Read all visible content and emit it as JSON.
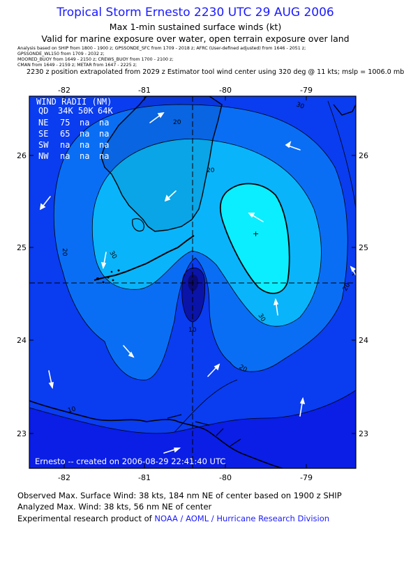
{
  "title": "Tropical Storm Ernesto 2230 UTC 29 AUG 2006",
  "subtitle1": "Max 1-min sustained surface winds (kt)",
  "subtitle2": "Valid for marine exposure over water, open terrain exposure over land",
  "analysis_lines": [
    "Analysis based on SHIP from 1800 - 1900 z;  GPSSONDE_SFC from 1709 - 2018 z;  AFRC (User-defined adjusted) from 1646 - 2051 z;",
    "GPSSONDE_WL150 from 1709 - 2032 z;",
    "MOORED_BUOY from 1649 - 2150 z;  CREWS_BUOY from 1700 - 2100 z;",
    "CMAN from 1649 - 2159 z;  METAR from 1647 - 2225 z;"
  ],
  "extrapolation_note": "2230 z position extrapolated from 2029 z Estimator tool wind center using 320 deg @ 11 kts; mslp = 1006.0 mb",
  "map": {
    "lon_ticks": [
      "-82",
      "-81",
      "-80",
      "-79"
    ],
    "lat_ticks": [
      "26",
      "25",
      "24",
      "23"
    ],
    "contour_labels": [
      "20",
      "20",
      "20",
      "20",
      "30",
      "30",
      "30",
      "10",
      "10",
      "20"
    ],
    "credit": "Ernesto -- created on 2006-08-29 22:41:40 UTC",
    "colors": {
      "lt10": "#0a1ee6",
      "c10": "#0a3cf0",
      "c20": "#0a6ef5",
      "c30": "#0ab4fa",
      "c35": "#0aeeff",
      "center_low": "#0b14a8",
      "text": "#ffffff",
      "land": "#000000"
    }
  },
  "wind_radii": {
    "title": "WIND RADII (NM)",
    "header": [
      "QD",
      "34K",
      "50K",
      "64K"
    ],
    "rows": [
      {
        "quadrant": "NE",
        "r34": "75",
        "r50": "na",
        "r64": "na"
      },
      {
        "quadrant": "SE",
        "r34": "65",
        "r50": "na",
        "r64": "na"
      },
      {
        "quadrant": "SW",
        "r34": "na",
        "r50": "na",
        "r64": "na"
      },
      {
        "quadrant": "NW",
        "r34": "na",
        "r50": "na",
        "r64": "na"
      }
    ]
  },
  "footer": {
    "observed": "Observed Max. Surface Wind: 38 kts, 184 nm NE of center based on 1900 z SHIP",
    "analyzed": "Analyzed Max. Wind: 38 kts, 56 nm NE of center",
    "product_prefix": "Experimental research product of ",
    "product_link": "NOAA / AOML / Hurricane Research Division"
  }
}
